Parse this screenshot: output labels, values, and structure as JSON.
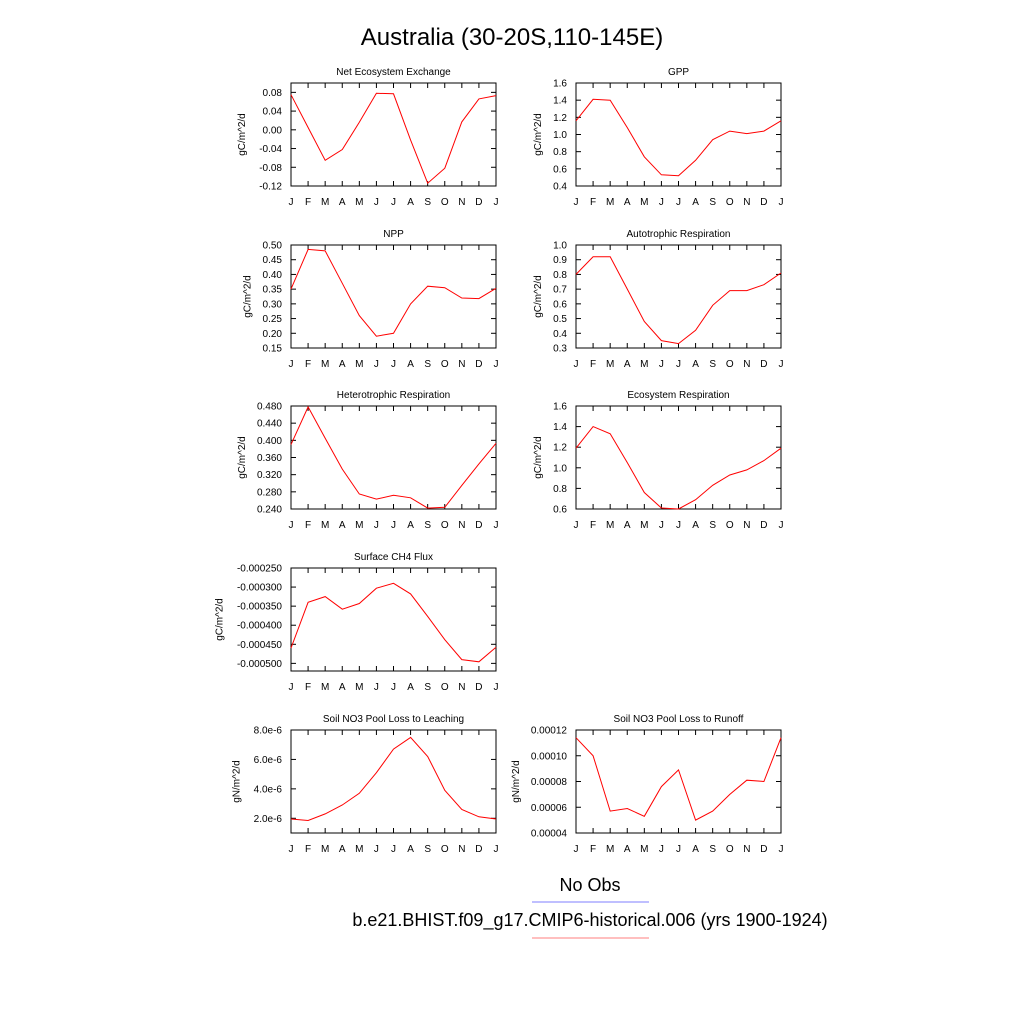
{
  "title": "Australia (30-20S,110-145E)",
  "colors": {
    "model": "#ff0000",
    "obs": "#0000ff"
  },
  "legend": [
    {
      "label": "No Obs",
      "color": "#7f7fff"
    },
    {
      "label": "b.e21.BHIST.f09_g17.CMIP6-historical.006 (yrs 1900-1924)",
      "color": "#ff7f7f"
    }
  ],
  "chart_data": [
    {
      "type": "line",
      "title": "Net Ecosystem Exchange",
      "ylabel": "gC/m^2/d",
      "x": [
        "J",
        "F",
        "M",
        "A",
        "M",
        "J",
        "J",
        "A",
        "S",
        "O",
        "N",
        "D",
        "J"
      ],
      "ylim": [
        -0.12,
        0.1
      ],
      "yticks": [
        "0.08",
        "0.04",
        "0.00",
        "-0.04",
        "-0.08",
        "-0.12"
      ],
      "ytick_values": [
        0.08,
        0.04,
        0.0,
        -0.04,
        -0.08,
        -0.12
      ],
      "series": [
        {
          "values": [
            0.075,
            0.005,
            -0.065,
            -0.042,
            0.016,
            0.078,
            0.077,
            -0.022,
            -0.114,
            -0.082,
            0.017,
            0.066,
            0.073
          ]
        }
      ]
    },
    {
      "type": "line",
      "title": "GPP",
      "ylabel": "gC/m^2/d",
      "x": [
        "J",
        "F",
        "M",
        "A",
        "M",
        "J",
        "J",
        "A",
        "S",
        "O",
        "N",
        "D",
        "J"
      ],
      "ylim": [
        0.4,
        1.6
      ],
      "yticks": [
        "1.6",
        "1.4",
        "1.2",
        "1.0",
        "0.8",
        "0.6",
        "0.4"
      ],
      "ytick_values": [
        1.6,
        1.4,
        1.2,
        1.0,
        0.8,
        0.6,
        0.4
      ],
      "series": [
        {
          "values": [
            1.16,
            1.41,
            1.4,
            1.08,
            0.74,
            0.53,
            0.52,
            0.7,
            0.94,
            1.04,
            1.01,
            1.04,
            1.16
          ]
        }
      ]
    },
    {
      "type": "line",
      "title": "NPP",
      "ylabel": "gC/m^2/d",
      "x": [
        "J",
        "F",
        "M",
        "A",
        "M",
        "J",
        "J",
        "A",
        "S",
        "O",
        "N",
        "D",
        "J"
      ],
      "ylim": [
        0.15,
        0.5
      ],
      "yticks": [
        "0.50",
        "0.45",
        "0.40",
        "0.35",
        "0.30",
        "0.25",
        "0.20",
        "0.15"
      ],
      "ytick_values": [
        0.5,
        0.45,
        0.4,
        0.35,
        0.3,
        0.25,
        0.2,
        0.15
      ],
      "series": [
        {
          "values": [
            0.35,
            0.485,
            0.48,
            0.37,
            0.26,
            0.19,
            0.2,
            0.3,
            0.36,
            0.355,
            0.32,
            0.318,
            0.353
          ]
        }
      ]
    },
    {
      "type": "line",
      "title": "Autotrophic Respiration",
      "ylabel": "gC/m^2/d",
      "x": [
        "J",
        "F",
        "M",
        "A",
        "M",
        "J",
        "J",
        "A",
        "S",
        "O",
        "N",
        "D",
        "J"
      ],
      "ylim": [
        0.3,
        1.0
      ],
      "yticks": [
        "1.0",
        "0.9",
        "0.8",
        "0.7",
        "0.6",
        "0.5",
        "0.4",
        "0.3"
      ],
      "ytick_values": [
        1.0,
        0.9,
        0.8,
        0.7,
        0.6,
        0.5,
        0.4,
        0.3
      ],
      "series": [
        {
          "values": [
            0.8,
            0.92,
            0.92,
            0.7,
            0.48,
            0.35,
            0.33,
            0.42,
            0.59,
            0.69,
            0.69,
            0.73,
            0.81
          ]
        }
      ]
    },
    {
      "type": "line",
      "title": "Heterotrophic Respiration",
      "ylabel": "gC/m^2/d",
      "x": [
        "J",
        "F",
        "M",
        "A",
        "M",
        "J",
        "J",
        "A",
        "S",
        "O",
        "N",
        "D",
        "J"
      ],
      "ylim": [
        0.24,
        0.48
      ],
      "yticks": [
        "0.480",
        "0.440",
        "0.400",
        "0.360",
        "0.320",
        "0.280",
        "0.240"
      ],
      "ytick_values": [
        0.48,
        0.44,
        0.4,
        0.36,
        0.32,
        0.28,
        0.24
      ],
      "series": [
        {
          "values": [
            0.39,
            0.478,
            0.405,
            0.333,
            0.275,
            0.263,
            0.272,
            0.266,
            0.242,
            0.244,
            0.295,
            0.345,
            0.393
          ]
        }
      ]
    },
    {
      "type": "line",
      "title": "Ecosystem Respiration",
      "ylabel": "gC/m^2/d",
      "x": [
        "J",
        "F",
        "M",
        "A",
        "M",
        "J",
        "J",
        "A",
        "S",
        "O",
        "N",
        "D",
        "J"
      ],
      "ylim": [
        0.6,
        1.6
      ],
      "yticks": [
        "1.6",
        "1.4",
        "1.2",
        "1.0",
        "0.8",
        "0.6"
      ],
      "ytick_values": [
        1.6,
        1.4,
        1.2,
        1.0,
        0.8,
        0.6
      ],
      "series": [
        {
          "values": [
            1.19,
            1.4,
            1.33,
            1.05,
            0.76,
            0.61,
            0.6,
            0.69,
            0.83,
            0.93,
            0.98,
            1.07,
            1.19
          ]
        }
      ]
    },
    {
      "type": "line",
      "title": "Surface CH4 Flux",
      "ylabel": "gC/m^2/d",
      "x": [
        "J",
        "F",
        "M",
        "A",
        "M",
        "J",
        "J",
        "A",
        "S",
        "O",
        "N",
        "D",
        "J"
      ],
      "ylim": [
        -0.00052,
        -0.00025
      ],
      "yticks": [
        "-0.000250",
        "-0.000300",
        "-0.000350",
        "-0.000400",
        "-0.000450",
        "-0.000500"
      ],
      "ytick_values": [
        -0.00025,
        -0.0003,
        -0.00035,
        -0.0004,
        -0.00045,
        -0.0005
      ],
      "series": [
        {
          "values": [
            -0.00046,
            -0.00034,
            -0.000325,
            -0.000358,
            -0.000343,
            -0.000303,
            -0.00029,
            -0.000318,
            -0.000377,
            -0.000438,
            -0.00049,
            -0.000496,
            -0.000458
          ]
        }
      ]
    },
    {
      "type": "line",
      "title": "Soil NO3 Pool Loss to Leaching",
      "ylabel": "gN/m^2/d",
      "x": [
        "J",
        "F",
        "M",
        "A",
        "M",
        "J",
        "J",
        "A",
        "S",
        "O",
        "N",
        "D",
        "J"
      ],
      "ylim": [
        1e-06,
        8e-06
      ],
      "yticks": [
        "8.0e-6",
        "6.0e-6",
        "4.0e-6",
        "2.0e-6"
      ],
      "ytick_values": [
        8e-06,
        6e-06,
        4e-06,
        2e-06
      ],
      "series": [
        {
          "values": [
            1.95e-06,
            1.85e-06,
            2.3e-06,
            2.9e-06,
            3.7e-06,
            5.1e-06,
            6.7e-06,
            7.5e-06,
            6.2e-06,
            3.9e-06,
            2.6e-06,
            2.1e-06,
            1.95e-06
          ]
        }
      ]
    },
    {
      "type": "line",
      "title": "Soil NO3 Pool Loss to Runoff",
      "ylabel": "gN/m^2/d",
      "x": [
        "J",
        "F",
        "M",
        "A",
        "M",
        "J",
        "J",
        "A",
        "S",
        "O",
        "N",
        "D",
        "J"
      ],
      "ylim": [
        4e-05,
        0.00012
      ],
      "yticks": [
        "0.00012",
        "0.00010",
        "0.00008",
        "0.00006",
        "0.00004"
      ],
      "ytick_values": [
        0.00012,
        0.0001,
        8e-05,
        6e-05,
        4e-05
      ],
      "series": [
        {
          "values": [
            0.000114,
            0.0001,
            5.7e-05,
            5.9e-05,
            5.3e-05,
            7.6e-05,
            8.9e-05,
            5e-05,
            5.7e-05,
            7e-05,
            8.1e-05,
            8e-05,
            0.000114
          ]
        }
      ]
    }
  ]
}
